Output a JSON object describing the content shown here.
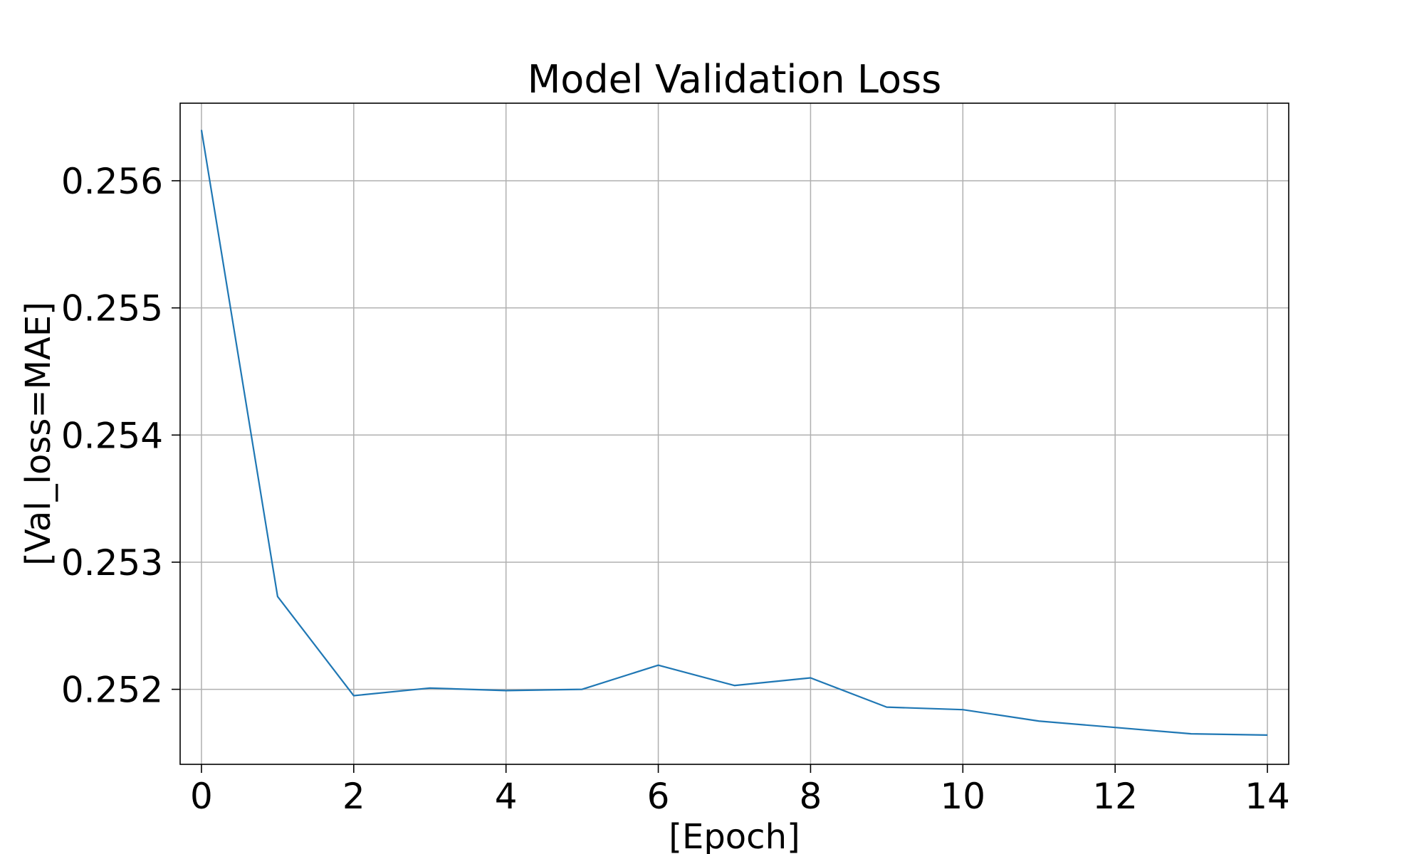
{
  "chart_data": {
    "type": "line",
    "title": "Model Validation Loss",
    "xlabel": "[Epoch]",
    "ylabel": "[Val_loss=MAE]",
    "xlim": [
      -0.28,
      14.28
    ],
    "ylim": [
      0.25141,
      0.25661
    ],
    "xticks": [
      0,
      2,
      4,
      6,
      8,
      10,
      12,
      14
    ],
    "xtick_labels": [
      "0",
      "2",
      "4",
      "6",
      "8",
      "10",
      "12",
      "14"
    ],
    "yticks": [
      0.252,
      0.253,
      0.254,
      0.255,
      0.256
    ],
    "ytick_labels": [
      "0.252",
      "0.253",
      "0.254",
      "0.255",
      "0.256"
    ],
    "grid": true,
    "series": [
      {
        "color": "#1f77b4",
        "x": [
          0,
          1,
          2,
          3,
          4,
          5,
          6,
          7,
          8,
          9,
          10,
          11,
          12,
          13,
          14
        ],
        "y": [
          0.2564,
          0.25273,
          0.25195,
          0.25201,
          0.25199,
          0.252,
          0.25219,
          0.25203,
          0.25209,
          0.25186,
          0.25184,
          0.25175,
          0.2517,
          0.25165,
          0.25164
        ]
      }
    ]
  }
}
